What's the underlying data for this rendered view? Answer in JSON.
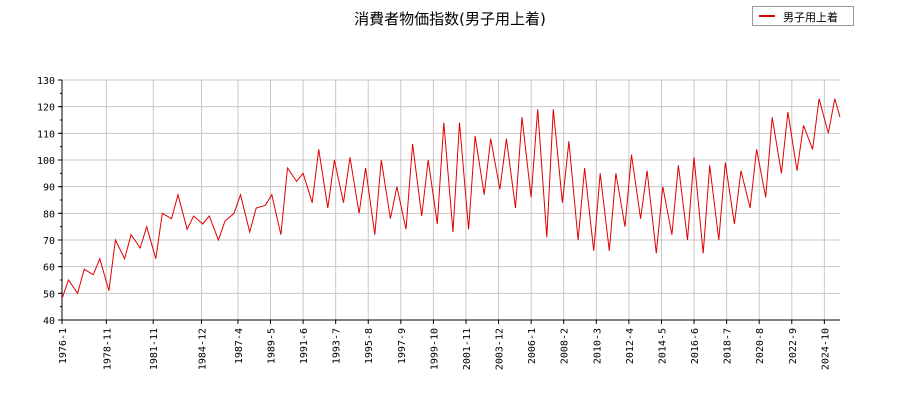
{
  "chart_data": {
    "type": "line",
    "title": "消費者物価指数(男子用上着)",
    "xlabel": "",
    "ylabel": "",
    "ylim": [
      40,
      130
    ],
    "yticks": [
      40,
      50,
      60,
      70,
      80,
      90,
      100,
      110,
      120,
      130
    ],
    "xlim": [
      "1976-1",
      "2025-10"
    ],
    "xticks": [
      "1976-1",
      "1978-11",
      "1981-11",
      "1984-12",
      "1987-4",
      "1989-5",
      "1991-6",
      "1993-7",
      "1995-8",
      "1997-9",
      "1999-10",
      "2001-11",
      "2003-12",
      "2006-1",
      "2008-2",
      "2010-3",
      "2012-4",
      "2014-5",
      "2016-6",
      "2018-7",
      "2020-8",
      "2022-9",
      "2024-10"
    ],
    "grid": true,
    "legend_position": "top-right",
    "series": [
      {
        "name": "男子用上着",
        "color": "#e00000",
        "x": [
          "1976-1",
          "1976-6",
          "1977-1",
          "1977-6",
          "1978-1",
          "1978-6",
          "1979-1",
          "1979-6",
          "1980-1",
          "1980-6",
          "1981-1",
          "1981-6",
          "1982-1",
          "1982-6",
          "1983-1",
          "1983-6",
          "1984-1",
          "1984-6",
          "1985-1",
          "1985-6",
          "1986-1",
          "1986-6",
          "1987-1",
          "1987-6",
          "1988-1",
          "1988-6",
          "1989-1",
          "1989-6",
          "1990-1",
          "1990-6",
          "1991-1",
          "1991-6",
          "1992-1",
          "1992-6",
          "1993-1",
          "1993-6",
          "1994-1",
          "1994-6",
          "1995-1",
          "1995-6",
          "1996-1",
          "1996-6",
          "1997-1",
          "1997-6",
          "1998-1",
          "1998-6",
          "1999-1",
          "1999-6",
          "2000-1",
          "2000-6",
          "2001-1",
          "2001-6",
          "2002-1",
          "2002-6",
          "2003-1",
          "2003-6",
          "2004-1",
          "2004-6",
          "2005-1",
          "2005-6",
          "2006-1",
          "2006-6",
          "2007-1",
          "2007-6",
          "2008-1",
          "2008-6",
          "2009-1",
          "2009-6",
          "2010-1",
          "2010-6",
          "2011-1",
          "2011-6",
          "2012-1",
          "2012-6",
          "2013-1",
          "2013-6",
          "2014-1",
          "2014-6",
          "2015-1",
          "2015-6",
          "2016-1",
          "2016-6",
          "2017-1",
          "2017-6",
          "2018-1",
          "2018-6",
          "2019-1",
          "2019-6",
          "2020-1",
          "2020-6",
          "2021-1",
          "2021-6",
          "2022-1",
          "2022-6",
          "2023-1",
          "2023-6",
          "2024-1",
          "2024-6",
          "2025-1",
          "2025-6",
          "2025-10"
        ],
        "values": [
          48,
          55,
          50,
          59,
          57,
          63,
          51,
          70,
          63,
          72,
          67,
          75,
          63,
          80,
          78,
          87,
          74,
          79,
          76,
          79,
          70,
          77,
          80,
          87,
          73,
          82,
          83,
          87,
          72,
          97,
          92,
          95,
          84,
          104,
          82,
          100,
          84,
          101,
          80,
          97,
          72,
          100,
          78,
          90,
          74,
          106,
          79,
          100,
          76,
          114,
          73,
          114,
          74,
          109,
          87,
          108,
          89,
          108,
          82,
          116,
          86,
          119,
          71,
          119,
          84,
          107,
          70,
          97,
          66,
          95,
          66,
          95,
          75,
          102,
          78,
          96,
          65,
          90,
          72,
          98,
          70,
          101,
          65,
          98,
          70,
          99,
          76,
          96,
          82,
          104,
          86,
          116,
          95,
          118,
          96,
          113,
          104,
          123,
          110,
          123,
          116
        ]
      }
    ]
  }
}
